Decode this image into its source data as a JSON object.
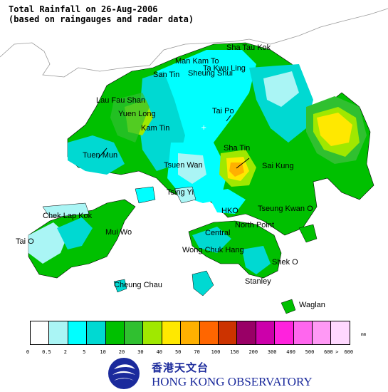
{
  "title_line1": "Total Rainfall on 26-Aug-2006",
  "title_line2": "(based on raingauges and radar data)",
  "places": [
    {
      "id": "sha-tau-kok",
      "label": "Sha Tau Kok"
    },
    {
      "id": "man-kam-to",
      "label": "Man Kam To"
    },
    {
      "id": "ta-kwu-ling",
      "label": "Ta Kwu Ling"
    },
    {
      "id": "san-tin",
      "label": "San Tin"
    },
    {
      "id": "sheung-shui",
      "label": "Sheung Shui"
    },
    {
      "id": "lau-fau-shan",
      "label": "Lau Fau Shan"
    },
    {
      "id": "yuen-long",
      "label": "Yuen Long"
    },
    {
      "id": "tai-po",
      "label": "Tai Po"
    },
    {
      "id": "kam-tin",
      "label": "Kam Tin"
    },
    {
      "id": "tuen-mun",
      "label": "Tuen Mun"
    },
    {
      "id": "sha-tin",
      "label": "Sha Tin"
    },
    {
      "id": "tsuen-wan",
      "label": "Tsuen Wan"
    },
    {
      "id": "sai-kung",
      "label": "Sai Kung"
    },
    {
      "id": "tsing-yi",
      "label": "Tsing Yi"
    },
    {
      "id": "chek-lap-kok",
      "label": "Chek Lap Kok"
    },
    {
      "id": "hko",
      "label": "HKO"
    },
    {
      "id": "tseung-kwan-o",
      "label": "Tseung Kwan O"
    },
    {
      "id": "mui-wo",
      "label": "Mui Wo"
    },
    {
      "id": "north-point",
      "label": "North Point"
    },
    {
      "id": "central",
      "label": "Central"
    },
    {
      "id": "tai-o",
      "label": "Tai O"
    },
    {
      "id": "wong-chuk-hang",
      "label": "Wong Chuk Hang"
    },
    {
      "id": "shek-o",
      "label": "Shek O"
    },
    {
      "id": "stanley",
      "label": "Stanley"
    },
    {
      "id": "cheung-chau",
      "label": "Cheung Chau"
    },
    {
      "id": "waglan",
      "label": "Waglan"
    }
  ],
  "legend": {
    "unit": "mm",
    "colors": [
      "#ffffff",
      "#aaf5f5",
      "#00ffff",
      "#00d9d2",
      "#00c000",
      "#30c030",
      "#a0e800",
      "#ffe800",
      "#ffb000",
      "#ff6600",
      "#cc3300",
      "#990066",
      "#cc00aa",
      "#ff22dd",
      "#ff66ee",
      "#ff99f5",
      "#ffd8ff"
    ],
    "ticks": [
      "0",
      "0.5",
      "2",
      "5",
      "10",
      "20",
      "30",
      "40",
      "50",
      "70",
      "100",
      "150",
      "200",
      "300",
      "400",
      "500",
      "600",
      ">",
      "600"
    ]
  },
  "rainfall_bands_mm": [
    "0-0.5",
    "0.5-2",
    "2-5",
    "5-10",
    "10-20",
    "20-30",
    "30-40",
    "40-50",
    "50-70",
    "70-100",
    "100-150",
    "150-200",
    "200-300",
    "300-400",
    "400-500",
    "500-600",
    ">600"
  ],
  "logo": {
    "zh": "香港天文台",
    "en": "HONG KONG OBSERVATORY",
    "colors": {
      "blue": "#1b2a9c"
    }
  }
}
